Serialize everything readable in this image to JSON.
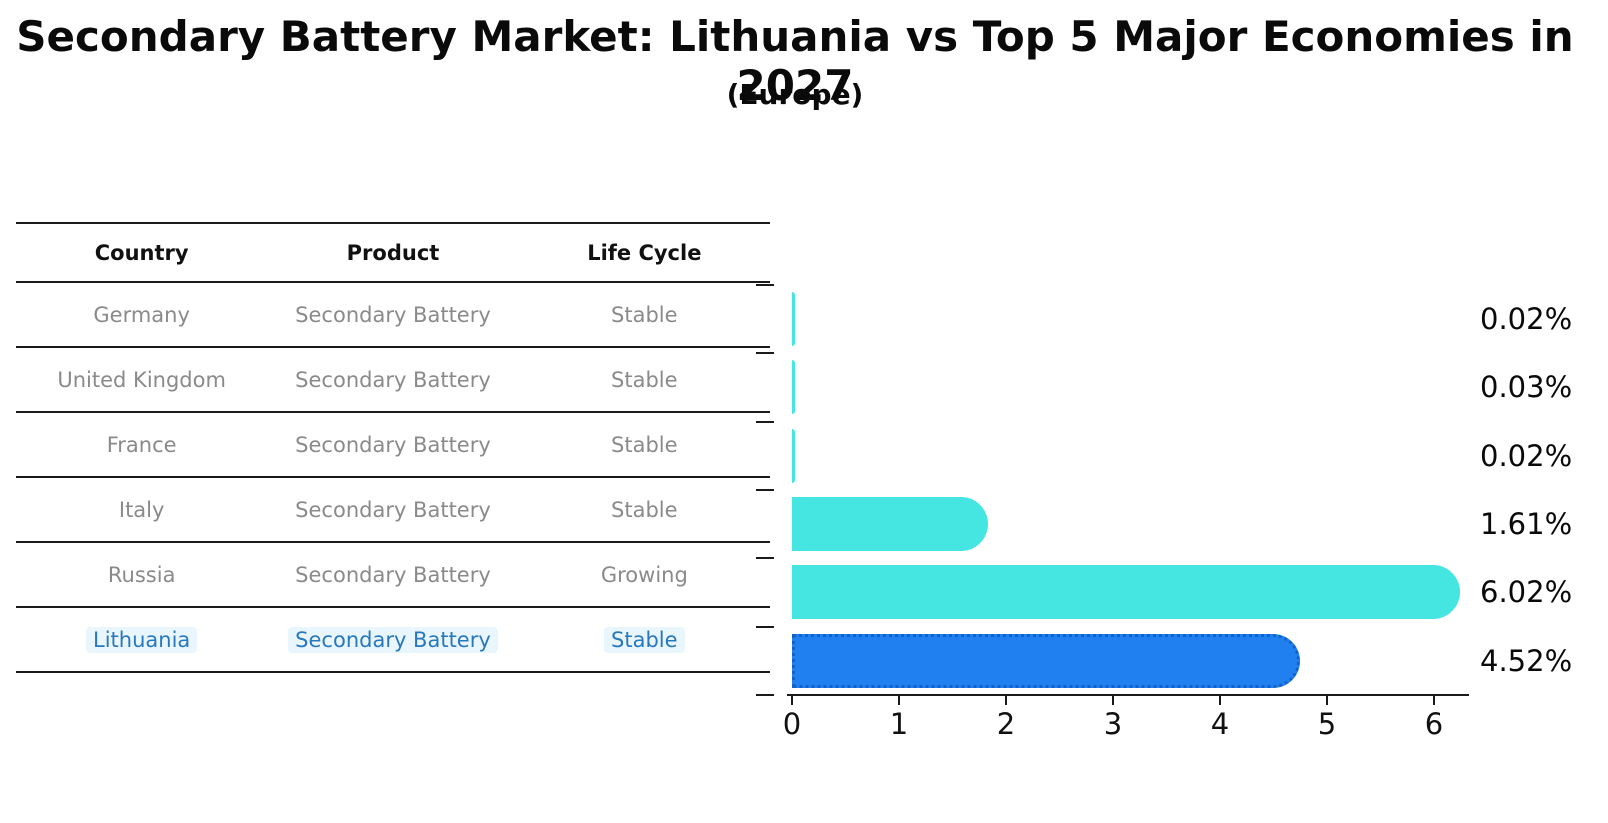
{
  "title": "Secondary Battery Market: Lithuania vs Top 5 Major Economies in 2027",
  "subtitle": "(Europe)",
  "table": {
    "headers": [
      "Country",
      "Product",
      "Life Cycle"
    ],
    "rows": [
      {
        "country": "Germany",
        "product": "Secondary Battery",
        "life_cycle": "Stable",
        "highlight": false
      },
      {
        "country": "United Kingdom",
        "product": "Secondary Battery",
        "life_cycle": "Stable",
        "highlight": false
      },
      {
        "country": "France",
        "product": "Secondary Battery",
        "life_cycle": "Stable",
        "highlight": false
      },
      {
        "country": "Italy",
        "product": "Secondary Battery",
        "life_cycle": "Stable",
        "highlight": false
      },
      {
        "country": "Russia",
        "product": "Secondary Battery",
        "life_cycle": "Growing",
        "highlight": false
      },
      {
        "country": "Lithuania",
        "product": "Secondary Battery",
        "life_cycle": "Stable",
        "highlight": true
      }
    ]
  },
  "chart_data": {
    "type": "bar",
    "orientation": "horizontal",
    "title": "Secondary Battery Market: Lithuania vs Top 5 Major Economies in 2027 (Europe)",
    "categories": [
      "Germany",
      "United Kingdom",
      "France",
      "Italy",
      "Russia",
      "Lithuania"
    ],
    "values": [
      0.02,
      0.03,
      0.02,
      1.61,
      6.02,
      4.52
    ],
    "value_labels": [
      "0.02%",
      "0.03%",
      "0.02%",
      "1.61%",
      "6.02%",
      "4.52%"
    ],
    "highlight_category": "Lithuania",
    "xlabel": "",
    "ylabel": "",
    "xlim": [
      0,
      6.3
    ],
    "x_ticks": [
      "0",
      "1",
      "2",
      "3",
      "4",
      "5",
      "6"
    ],
    "grid": false,
    "legend": "none",
    "colors": {
      "bar_default": "#45e6e2",
      "bar_highlight": "#2080f0",
      "bar_highlight_border": "#1262cc",
      "highlight_text": "#2878be",
      "row_text": "#8a8a8a",
      "axis_text": "#111111"
    }
  }
}
